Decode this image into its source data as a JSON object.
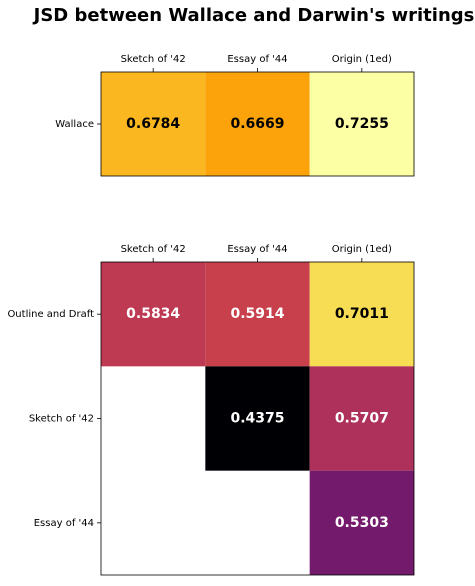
{
  "title": "JSD between Wallace and Darwin's writings",
  "chart_data": [
    {
      "type": "heatmap",
      "colormap": "inferno",
      "x_categories": [
        "Sketch of '42",
        "Essay of '44",
        "Origin (1ed)"
      ],
      "y_categories": [
        "Wallace"
      ],
      "values": [
        [
          0.6784,
          0.6669,
          0.7255
        ]
      ]
    },
    {
      "type": "heatmap",
      "colormap": "inferno",
      "x_categories": [
        "Sketch of '42",
        "Essay of '44",
        "Origin (1ed)"
      ],
      "y_categories": [
        "Outline and Draft",
        "Sketch of '42",
        "Essay of '44"
      ],
      "values": [
        [
          0.5834,
          0.5914,
          0.7011
        ],
        [
          null,
          0.4375,
          0.5707
        ],
        [
          null,
          null,
          0.5303
        ]
      ]
    }
  ]
}
